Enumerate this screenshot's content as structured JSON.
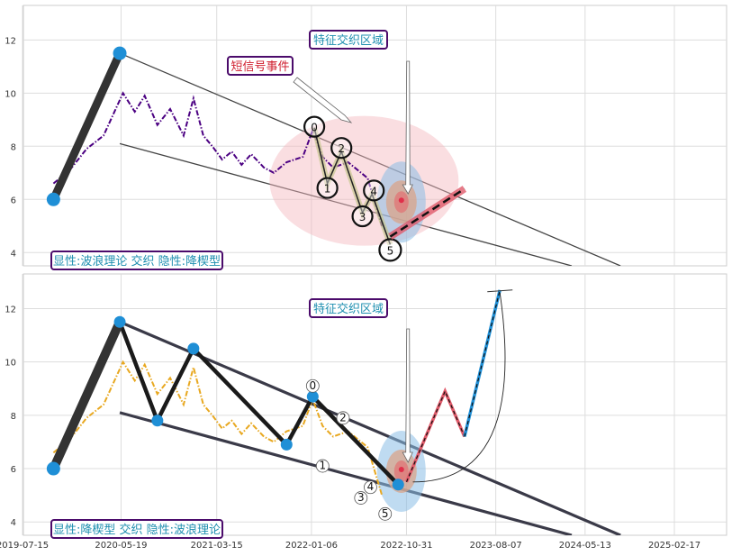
{
  "chart_data": [
    {
      "type": "line",
      "panel": "top",
      "ylim": [
        3.5,
        13.3
      ],
      "y_ticks": [
        "4",
        "6",
        "8",
        "10",
        "12"
      ],
      "grid": true,
      "series": [
        {
          "color": "#4b0082",
          "style": "dash-dot",
          "points": [
            [
              "2019-10-20",
              6.6
            ],
            [
              "2019-12-10",
              7.1
            ],
            [
              "2020-02-01",
              7.9
            ],
            [
              "2020-03-25",
              8.4
            ],
            [
              "2020-05-25",
              10.0
            ],
            [
              "2020-07-01",
              9.3
            ],
            [
              "2020-08-01",
              9.9
            ],
            [
              "2020-09-10",
              8.8
            ],
            [
              "2020-10-20",
              9.4
            ],
            [
              "2020-12-01",
              8.4
            ],
            [
              "2021-01-01",
              9.8
            ],
            [
              "2021-02-01",
              8.4
            ],
            [
              "2021-03-01",
              8.0
            ],
            [
              "2021-04-01",
              7.5
            ],
            [
              "2021-05-01",
              7.8
            ],
            [
              "2021-06-01",
              7.3
            ],
            [
              "2021-07-01",
              7.7
            ],
            [
              "2021-08-10",
              7.2
            ],
            [
              "2021-09-10",
              7.0
            ],
            [
              "2021-10-20",
              7.4
            ],
            [
              "2021-12-10",
              7.6
            ],
            [
              "2022-01-10",
              8.6
            ],
            [
              "2022-02-10",
              7.6
            ],
            [
              "2022-03-15",
              7.2
            ],
            [
              "2022-05-01",
              7.4
            ],
            [
              "2022-07-01",
              6.8
            ],
            [
              "2022-08-15",
              5.0
            ]
          ]
        },
        {
          "color": "#b5a642",
          "style": "wave",
          "points": [
            [
              "2022-01-15",
              8.7
            ],
            [
              "2022-02-25",
              6.6
            ],
            [
              "2022-04-10",
              7.8
            ],
            [
              "2022-06-15",
              5.5
            ],
            [
              "2022-07-15",
              6.2
            ],
            [
              "2022-09-10",
              4.3
            ]
          ]
        },
        {
          "color": "#333333",
          "style": "thick",
          "points": [
            [
              "2019-10-20",
              6.0
            ],
            [
              "2020-05-15",
              11.5
            ]
          ]
        },
        {
          "color": "#e05a6a",
          "style": "thick",
          "points": [
            [
              "2022-09-10",
              4.6
            ],
            [
              "2023-05-01",
              6.4
            ]
          ]
        }
      ],
      "wave_labels": [
        "0",
        "1",
        "2",
        "3",
        "4",
        "5"
      ],
      "annotations": [
        "特征交织区域",
        "短信号事件"
      ],
      "footer_label": "显性:波浪理论 交织 隐性:降楔型"
    },
    {
      "type": "line",
      "panel": "bottom",
      "ylim": [
        3.5,
        13.3
      ],
      "y_ticks": [
        "4",
        "6",
        "8",
        "10",
        "12"
      ],
      "x_ticks": [
        "2019-07-15",
        "2020-05-19",
        "2021-03-15",
        "2022-01-06",
        "2022-10-31",
        "2023-08-07",
        "2024-05-13",
        "2025-02-17"
      ],
      "grid": true,
      "series": [
        {
          "color": "#e8a820",
          "style": "dash-dot",
          "points": [
            [
              "2019-10-20",
              6.6
            ],
            [
              "2019-12-10",
              7.1
            ],
            [
              "2020-02-01",
              7.9
            ],
            [
              "2020-03-25",
              8.4
            ],
            [
              "2020-05-25",
              10.0
            ],
            [
              "2020-07-01",
              9.3
            ],
            [
              "2020-08-01",
              9.9
            ],
            [
              "2020-09-10",
              8.8
            ],
            [
              "2020-10-20",
              9.4
            ],
            [
              "2020-12-01",
              8.4
            ],
            [
              "2021-01-01",
              9.8
            ],
            [
              "2021-02-01",
              8.4
            ],
            [
              "2021-03-01",
              8.0
            ],
            [
              "2021-04-01",
              7.5
            ],
            [
              "2021-05-01",
              7.8
            ],
            [
              "2021-06-01",
              7.3
            ],
            [
              "2021-07-01",
              7.7
            ],
            [
              "2021-08-10",
              7.2
            ],
            [
              "2021-09-10",
              7.0
            ],
            [
              "2021-10-20",
              7.4
            ],
            [
              "2021-12-10",
              7.6
            ],
            [
              "2022-01-10",
              8.6
            ],
            [
              "2022-02-10",
              7.6
            ],
            [
              "2022-03-15",
              7.2
            ],
            [
              "2022-05-01",
              7.4
            ],
            [
              "2022-07-01",
              6.8
            ],
            [
              "2022-08-15",
              5.0
            ]
          ]
        },
        {
          "color": "#1a1a1a",
          "style": "wedge-zigzag",
          "points": [
            [
              "2019-10-20",
              6.0
            ],
            [
              "2020-05-15",
              11.5
            ],
            [
              "2020-09-10",
              7.8
            ],
            [
              "2021-01-01",
              10.5
            ],
            [
              "2021-10-20",
              6.9
            ],
            [
              "2022-01-10",
              8.7
            ],
            [
              "2022-10-05",
              5.4
            ]
          ]
        },
        {
          "color": "#d06070",
          "style": "projection",
          "points": [
            [
              "2022-10-31",
              5.5
            ],
            [
              "2023-03-01",
              8.9
            ],
            [
              "2023-05-01",
              7.2
            ],
            [
              "2023-08-20",
              12.7
            ]
          ]
        }
      ],
      "wave_labels": [
        "0",
        "1",
        "2",
        "3",
        "4",
        "5"
      ],
      "annotations": [
        "特征交织区域"
      ],
      "footer_label": "显性:降楔型 交织 隐性:波浪理论"
    }
  ]
}
